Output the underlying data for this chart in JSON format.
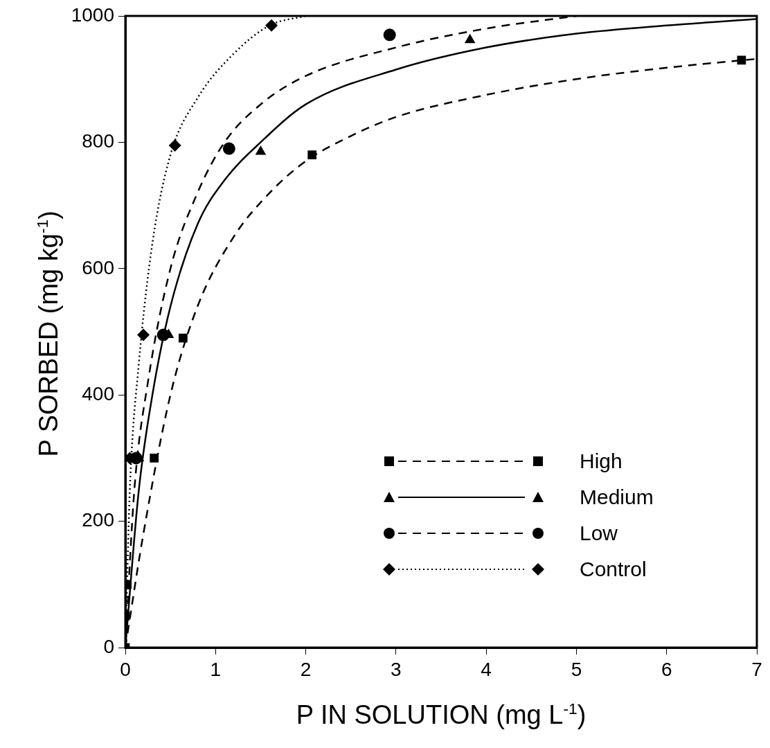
{
  "chart_data": {
    "type": "scatter",
    "xlabel": "P IN SOLUTION (mg L$^{-1}$)",
    "ylabel": "P SORBED (mg kg$^{-1}$)",
    "xlim": [
      0,
      7
    ],
    "ylim": [
      0,
      1000
    ],
    "xticks": [
      0,
      1,
      2,
      3,
      4,
      5,
      6,
      7
    ],
    "yticks": [
      0,
      200,
      400,
      600,
      800,
      1000
    ],
    "grid": false,
    "legend": "bottom right",
    "series": [
      {
        "name": "High",
        "type": "scatter",
        "marker": "square",
        "line_style": "dashed",
        "color": "#000000",
        "x": [
          0,
          0,
          0.02,
          0.32,
          0.64,
          2.07,
          6.83
        ],
        "values": [
          0,
          50,
          100,
          300,
          490,
          780,
          930
        ]
      },
      {
        "name": "Medium",
        "type": "scatter",
        "marker": "triangle",
        "line_style": "solid",
        "color": "#000000",
        "x": [
          0.15,
          0.48,
          1.5,
          3.82
        ],
        "values": [
          300,
          495,
          785,
          962
        ]
      },
      {
        "name": "Low",
        "type": "scatter",
        "marker": "circle",
        "line_style": "dashed",
        "color": "#000000",
        "x": [
          0.12,
          0.42,
          1.15,
          2.93
        ],
        "values": [
          300,
          495,
          790,
          970
        ]
      },
      {
        "name": "Control",
        "type": "scatter",
        "marker": "diamond",
        "line_style": "dotted",
        "color": "#000000",
        "x": [
          0.05,
          0.2,
          0.55,
          1.62
        ],
        "values": [
          300,
          495,
          795,
          985
        ]
      },
      {
        "type": "line",
        "marker": "none",
        "line_style": "dashed",
        "color": "#000000",
        "x": [
          0,
          0.2,
          0.5,
          0.8,
          1.2,
          1.6,
          2,
          2.5,
          3,
          4,
          5,
          6,
          7
        ],
        "values": [
          0,
          180,
          400,
          540,
          650,
          720,
          770,
          810,
          840,
          875,
          900,
          918,
          932
        ]
      },
      {
        "type": "line",
        "marker": "none",
        "line_style": "solid",
        "color": "#000000",
        "x": [
          0,
          0.15,
          0.3,
          0.5,
          0.8,
          1.1,
          1.5,
          2,
          3,
          4,
          5,
          6,
          7
        ],
        "values": [
          0,
          250,
          400,
          540,
          670,
          740,
          800,
          860,
          915,
          950,
          972,
          985,
          995
        ]
      },
      {
        "type": "line",
        "marker": "none",
        "line_style": "dashed",
        "color": "#000000",
        "x": [
          0,
          0.1,
          0.25,
          0.5,
          0.8,
          1.1,
          1.5,
          2,
          3,
          4,
          5
        ],
        "values": [
          0,
          250,
          420,
          600,
          720,
          800,
          860,
          905,
          950,
          980,
          1000
        ]
      },
      {
        "type": "line",
        "marker": "none",
        "line_style": "dotted",
        "color": "#000000",
        "x": [
          0,
          0.05,
          0.15,
          0.3,
          0.5,
          0.8,
          1.2,
          1.6,
          2
        ],
        "values": [
          0,
          250,
          450,
          640,
          780,
          870,
          940,
          985,
          1000
        ]
      }
    ]
  }
}
